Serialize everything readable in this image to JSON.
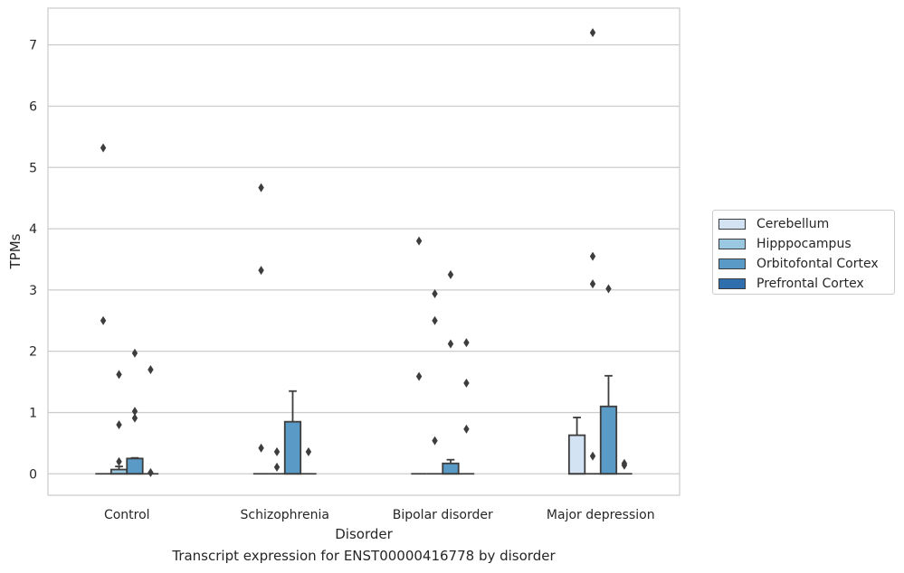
{
  "chart_data": {
    "type": "box",
    "caption": "Transcript expression for ENST00000416778 by disorder",
    "xlabel": "Disorder",
    "ylabel": "TPMs",
    "ylim": [
      -0.35,
      7.6
    ],
    "yticks": [
      0,
      1,
      2,
      3,
      4,
      5,
      6,
      7
    ],
    "grid": true,
    "legend_position": "right",
    "categories": [
      "Control",
      "Schizophrenia",
      "Bipolar disorder",
      "Major depression"
    ],
    "series": [
      {
        "name": "Cerebellum",
        "color": "#d3e3f3",
        "boxes": [
          {
            "q1": 0,
            "median": 0,
            "q3": 0,
            "whisker_low": 0,
            "whisker_high": 0,
            "outliers": [
              5.32,
              2.5
            ]
          },
          {
            "q1": 0,
            "median": 0,
            "q3": 0,
            "whisker_low": 0,
            "whisker_high": 0,
            "outliers": [
              4.67,
              3.32,
              0.42
            ]
          },
          {
            "q1": 0,
            "median": 0,
            "q3": 0,
            "whisker_low": 0,
            "whisker_high": 0,
            "outliers": [
              3.8,
              1.59
            ]
          },
          {
            "q1": 0,
            "median": 0,
            "q3": 0.63,
            "whisker_low": 0,
            "whisker_high": 0.92,
            "outliers": []
          }
        ]
      },
      {
        "name": "Hipppocampus",
        "color": "#9ac8e0",
        "boxes": [
          {
            "q1": 0,
            "median": 0,
            "q3": 0.07,
            "whisker_low": 0,
            "whisker_high": 0.12,
            "outliers": [
              1.62,
              0.8,
              0.2
            ]
          },
          {
            "q1": 0,
            "median": 0,
            "q3": 0,
            "whisker_low": 0,
            "whisker_high": 0,
            "outliers": [
              0.36,
              0.11
            ]
          },
          {
            "q1": 0,
            "median": 0,
            "q3": 0,
            "whisker_low": 0,
            "whisker_high": 0,
            "outliers": [
              2.94,
              2.5,
              0.54
            ]
          },
          {
            "q1": 0,
            "median": 0,
            "q3": 0,
            "whisker_low": 0,
            "whisker_high": 0,
            "outliers": [
              7.2,
              3.55,
              3.1,
              0.29
            ]
          }
        ]
      },
      {
        "name": "Orbitofontal Cortex",
        "color": "#5a9ac6",
        "boxes": [
          {
            "q1": 0,
            "median": 0,
            "q3": 0.25,
            "whisker_low": 0,
            "whisker_high": 0.26,
            "outliers": [
              1.97,
              1.02,
              0.91
            ]
          },
          {
            "q1": 0,
            "median": 0,
            "q3": 0.85,
            "whisker_low": 0,
            "whisker_high": 1.35,
            "outliers": []
          },
          {
            "q1": 0,
            "median": 0,
            "q3": 0.17,
            "whisker_low": 0,
            "whisker_high": 0.23,
            "outliers": [
              3.25,
              2.12
            ]
          },
          {
            "q1": 0,
            "median": 0,
            "q3": 1.1,
            "whisker_low": 0,
            "whisker_high": 1.6,
            "outliers": [
              3.02
            ]
          }
        ]
      },
      {
        "name": "Prefrontal Cortex",
        "color": "#2f6fae",
        "boxes": [
          {
            "q1": 0,
            "median": 0,
            "q3": 0,
            "whisker_low": 0,
            "whisker_high": 0,
            "outliers": [
              1.7,
              0.02
            ]
          },
          {
            "q1": 0,
            "median": 0,
            "q3": 0,
            "whisker_low": 0,
            "whisker_high": 0,
            "outliers": [
              0.36
            ]
          },
          {
            "q1": 0,
            "median": 0,
            "q3": 0,
            "whisker_low": 0,
            "whisker_high": 0,
            "outliers": [
              2.14,
              1.48,
              0.73
            ]
          },
          {
            "q1": 0,
            "median": 0,
            "q3": 0,
            "whisker_low": 0,
            "whisker_high": 0,
            "outliers": [
              0.17,
              0.14
            ]
          }
        ]
      }
    ]
  }
}
